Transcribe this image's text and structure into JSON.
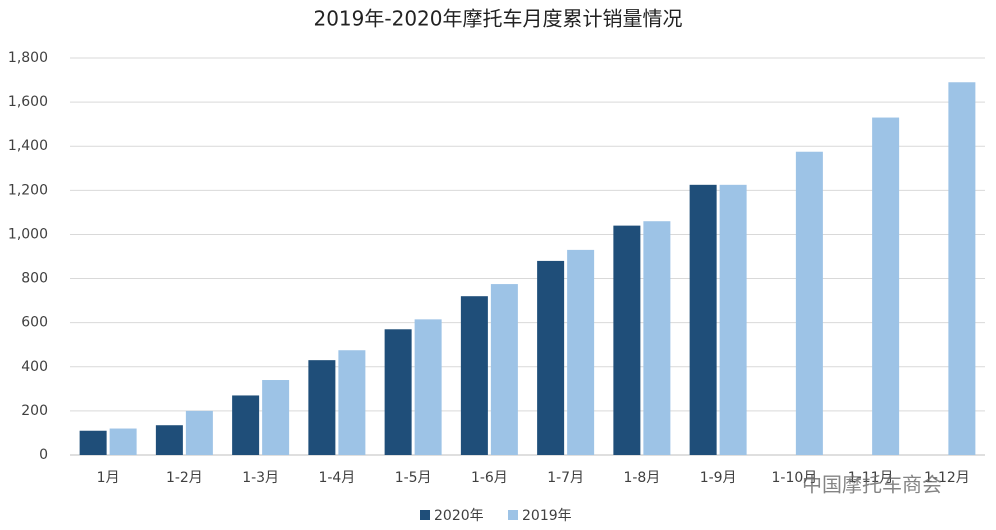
{
  "chart_data": {
    "type": "bar",
    "title": "2019年-2020年摩托车月度累计销量情况",
    "categories": [
      "1月",
      "1-2月",
      "1-3月",
      "1-4月",
      "1-5月",
      "1-6月",
      "1-7月",
      "1-8月",
      "1-9月",
      "1-10月",
      "1-11月",
      "1-12月"
    ],
    "series": [
      {
        "name": "2020年",
        "color": "#1f4e79",
        "values": [
          110,
          135,
          270,
          430,
          570,
          720,
          880,
          1040,
          1225,
          null,
          null,
          null
        ]
      },
      {
        "name": "2019年",
        "color": "#9dc3e6",
        "values": [
          120,
          200,
          340,
          475,
          615,
          775,
          930,
          1060,
          1225,
          1375,
          1530,
          1690
        ]
      }
    ],
    "ylim": [
      0,
      1800
    ],
    "yticks": [
      0,
      200,
      400,
      600,
      800,
      {
        "value": 1000,
        "label": "1,000"
      },
      {
        "value": 1200,
        "label": "1,200"
      },
      {
        "value": 1400,
        "label": "1,400"
      },
      {
        "value": 1600,
        "label": "1,600"
      },
      {
        "value": 1800,
        "label": "1,800"
      }
    ],
    "grid": true,
    "legend": "bottom",
    "watermark": "中国摩托车商会"
  }
}
